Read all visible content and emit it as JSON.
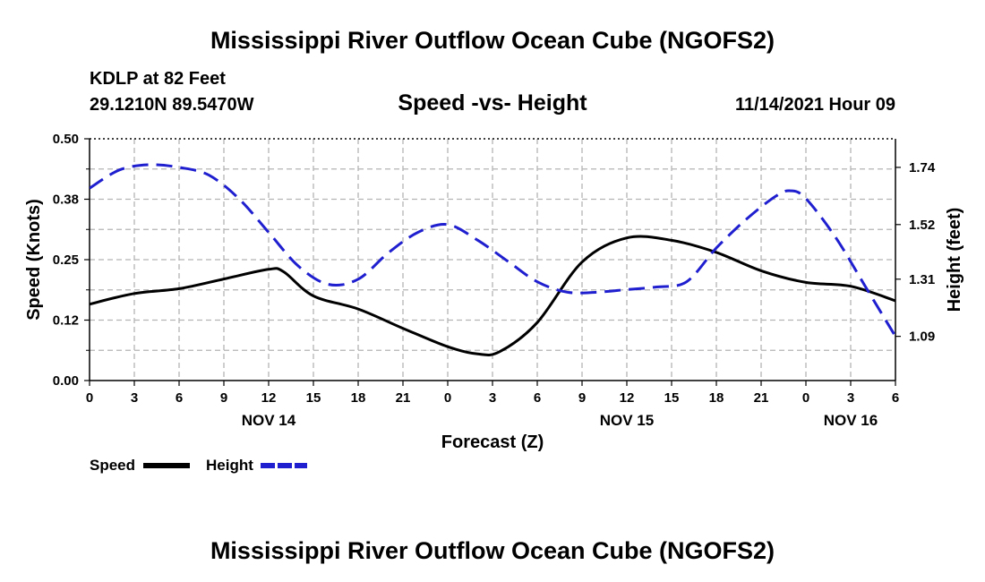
{
  "header": {
    "title": "Mississippi River Outflow Ocean Cube (NGOFS2)",
    "station": "KDLP at 82 Feet",
    "coords": "29.1210N  89.5470W",
    "datetime": "11/14/2021 Hour 09",
    "subtitle": "Speed -vs- Height"
  },
  "footer": {
    "title": "Mississippi River Outflow Ocean Cube (NGOFS2)"
  },
  "colors": {
    "speed": "#000000",
    "height": "#1f1fcf",
    "grid": "#b4b4b4"
  },
  "chart_data": {
    "type": "line",
    "title": "Speed -vs- Height",
    "xlabel": "Forecast (Z)",
    "ylabel": "Speed (Knots)",
    "y2label": "Height (feet)",
    "x_range": [
      0,
      54
    ],
    "x_ticks": [
      0,
      3,
      6,
      9,
      12,
      15,
      18,
      21,
      24,
      27,
      30,
      33,
      36,
      39,
      42,
      45,
      48,
      51,
      54
    ],
    "x_tick_labels": [
      "0",
      "3",
      "6",
      "9",
      "12",
      "15",
      "18",
      "21",
      "0",
      "3",
      "6",
      "9",
      "12",
      "15",
      "18",
      "21",
      "0",
      "3",
      "6"
    ],
    "day_labels": [
      {
        "x": 12,
        "label": "NOV 14"
      },
      {
        "x": 36,
        "label": "NOV 15"
      },
      {
        "x": 51,
        "label": "NOV 16"
      }
    ],
    "ylim": [
      0,
      0.5
    ],
    "y_ticks": [
      0.0,
      0.125,
      0.25,
      0.375,
      0.5
    ],
    "y_tick_labels": [
      "0.00",
      "0.12",
      "0.25",
      "0.38",
      "0.50"
    ],
    "y2lim": [
      0.92,
      1.85
    ],
    "y2_ticks": [
      1.09,
      1.31,
      1.52,
      1.74
    ],
    "y2_tick_labels": [
      "1.09",
      "1.31",
      "1.52",
      "1.74"
    ],
    "series": [
      {
        "name": "Speed",
        "axis": "left",
        "style": "solid",
        "x": [
          0,
          3,
          6,
          9,
          12,
          13,
          15,
          18,
          21,
          24,
          26,
          27.5,
          30,
          33,
          36,
          39,
          42,
          45,
          48,
          51,
          54
        ],
        "values": [
          0.158,
          0.18,
          0.19,
          0.21,
          0.23,
          0.225,
          0.175,
          0.148,
          0.108,
          0.07,
          0.055,
          0.06,
          0.12,
          0.245,
          0.295,
          0.29,
          0.265,
          0.227,
          0.203,
          0.195,
          0.165
        ]
      },
      {
        "name": "Height",
        "axis": "right",
        "style": "dashed",
        "x": [
          0,
          2,
          4,
          6,
          8,
          10,
          12,
          14,
          16,
          18,
          20,
          22,
          24,
          26,
          28,
          30,
          32,
          34,
          36,
          38,
          40,
          42,
          44,
          46,
          47,
          48,
          50,
          52,
          54
        ],
        "values": [
          1.66,
          1.73,
          1.75,
          1.74,
          1.71,
          1.62,
          1.49,
          1.36,
          1.29,
          1.31,
          1.41,
          1.49,
          1.52,
          1.46,
          1.38,
          1.3,
          1.26,
          1.26,
          1.27,
          1.28,
          1.3,
          1.43,
          1.54,
          1.63,
          1.65,
          1.62,
          1.47,
          1.28,
          1.09
        ]
      }
    ],
    "legend": [
      {
        "label": "Speed",
        "style": "solid"
      },
      {
        "label": "Height",
        "style": "dashed"
      }
    ],
    "legend_position": "bottom-left",
    "grid": true
  }
}
